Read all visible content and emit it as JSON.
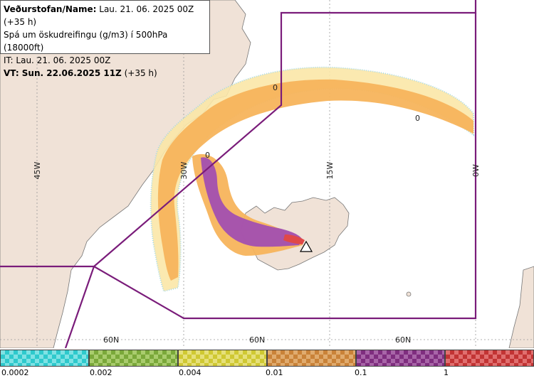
{
  "header": {
    "line1_label": "Veðurstofan/Name:",
    "line1_value": "Lau. 21. 06. 2025 00Z (+35 h)",
    "line2": "Spá um öskudreifingu (g/m3) í 500hPa (18000ft)",
    "line3": "IT: Lau. 21. 06. 2025 00Z",
    "line4_label": "VT: Sun. 22.06.2025 11Z",
    "line4_value": "(+35 h)"
  },
  "map": {
    "longitudes": [
      "45W",
      "30W",
      "15W",
      "0W"
    ],
    "latitudes": [
      "60N",
      "60N",
      "60N"
    ],
    "contour_labels": [
      "0",
      "0",
      "0"
    ],
    "volcano_marker": "volcano-triangle"
  },
  "legend": {
    "ticks": [
      "0.0002",
      "0.002",
      "0.004",
      "0.01",
      "0.1",
      "1"
    ],
    "colors": [
      "#2ec9cc",
      "#7aa83a",
      "#cfc832",
      "#c98238",
      "#7f2e7f",
      "#c23434"
    ]
  }
}
